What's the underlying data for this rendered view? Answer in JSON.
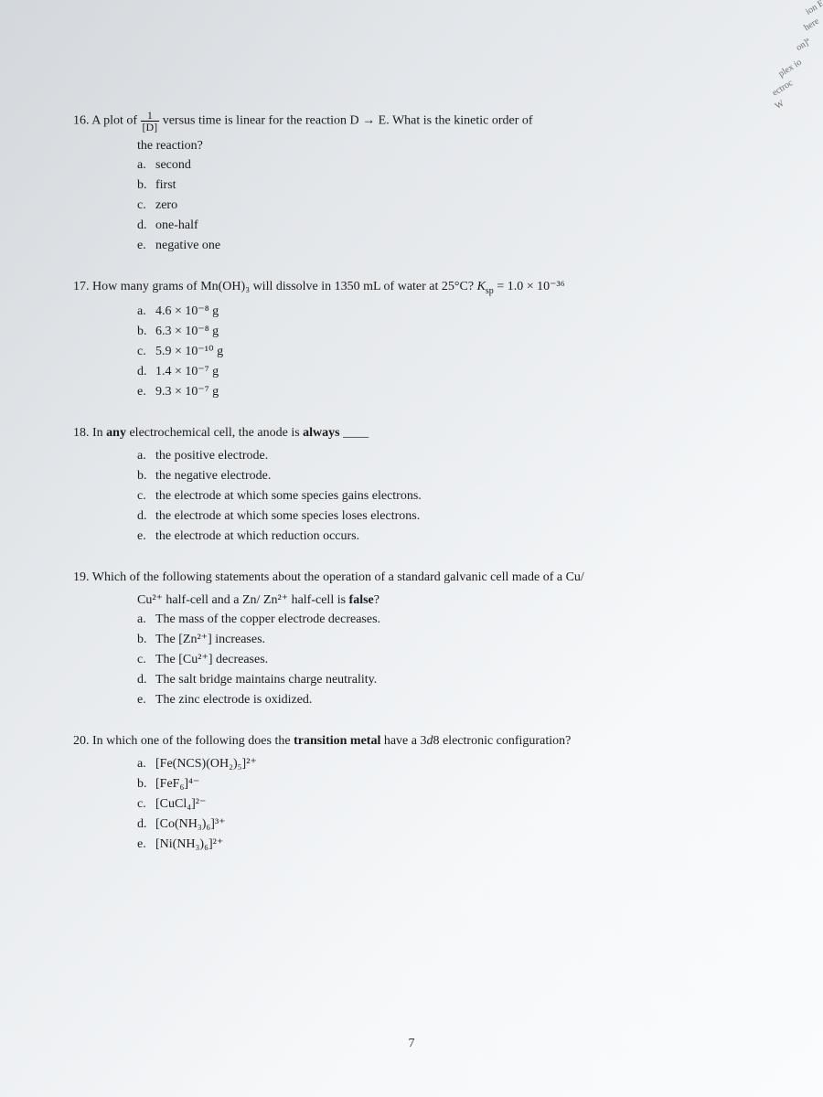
{
  "page": {
    "number": "7",
    "background_gradient_start": "#d8dce0",
    "background_gradient_end": "#fafbfc",
    "text_color": "#1a1a1a",
    "font_family": "Times New Roman",
    "base_font_size": 14
  },
  "corner_tabs": {
    "tab1": "ion Eq",
    "tab2": "here",
    "tab3": "on]ª",
    "tab4": "plex io",
    "tab5": "ectroc",
    "tab6": "W"
  },
  "q16": {
    "number": "16.",
    "text_start": "A plot of ",
    "fraction_num": "1",
    "fraction_den": "[D]",
    "text_mid": " versus time is linear for the reaction D → E. What is the kinetic order of",
    "text_line2": "the reaction?",
    "a": "second",
    "b": "first",
    "c": "zero",
    "d": "one-half",
    "e": "negative one"
  },
  "q17": {
    "number": "17.",
    "text": "How many grams of Mn(OH)₃ will dissolve in 1350 mL of water at 25°C? ",
    "ksp_label": "K",
    "ksp_sub": "sp",
    "ksp_value": " = 1.0 × 10⁻³⁶",
    "a": "4.6 × 10⁻⁸ g",
    "b": "6.3 × 10⁻⁸ g",
    "c": "5.9 × 10⁻¹⁰ g",
    "d": "1.4 × 10⁻⁷ g",
    "e": "9.3 × 10⁻⁷ g"
  },
  "q18": {
    "number": "18.",
    "text_start": "In ",
    "bold1": "any",
    "text_mid": " electrochemical cell, the anode is ",
    "bold2": "always",
    "text_end": " ____",
    "a": "the positive electrode.",
    "b": "the negative electrode.",
    "c": "the electrode at which some species gains electrons.",
    "d": "the electrode at which some species loses electrons.",
    "e": "the electrode at which reduction occurs."
  },
  "q19": {
    "number": "19.",
    "text_line1": "Which of the following statements about the operation of a standard galvanic cell made of a Cu/",
    "text_line2_start": "Cu²⁺ half-cell and a Zn/ Zn²⁺ half-cell is ",
    "bold_false": "false",
    "text_line2_end": "?",
    "a": "The mass of the copper electrode decreases.",
    "b": "The [Zn²⁺] increases.",
    "c": "The [Cu²⁺] decreases.",
    "d": "The salt bridge maintains charge neutrality.",
    "e": "The zinc electrode is oxidized."
  },
  "q20": {
    "number": "20.",
    "text_start": "In which one of the following does the ",
    "bold_tm": "transition metal",
    "text_mid": " have a 3",
    "italic_d": "d",
    "text_end": "8 electronic configuration?",
    "a": "[Fe(NCS)(OH₂)₅]²⁺",
    "b": "[FeF₆]⁴⁻",
    "c": "[CuCl₄]²⁻",
    "d": "[Co(NH₃)₆]³⁺",
    "e": "[Ni(NH₃)₆]²⁺"
  },
  "labels": {
    "a": "a.",
    "b": "b.",
    "c": "c.",
    "d": "d.",
    "e": "e."
  }
}
